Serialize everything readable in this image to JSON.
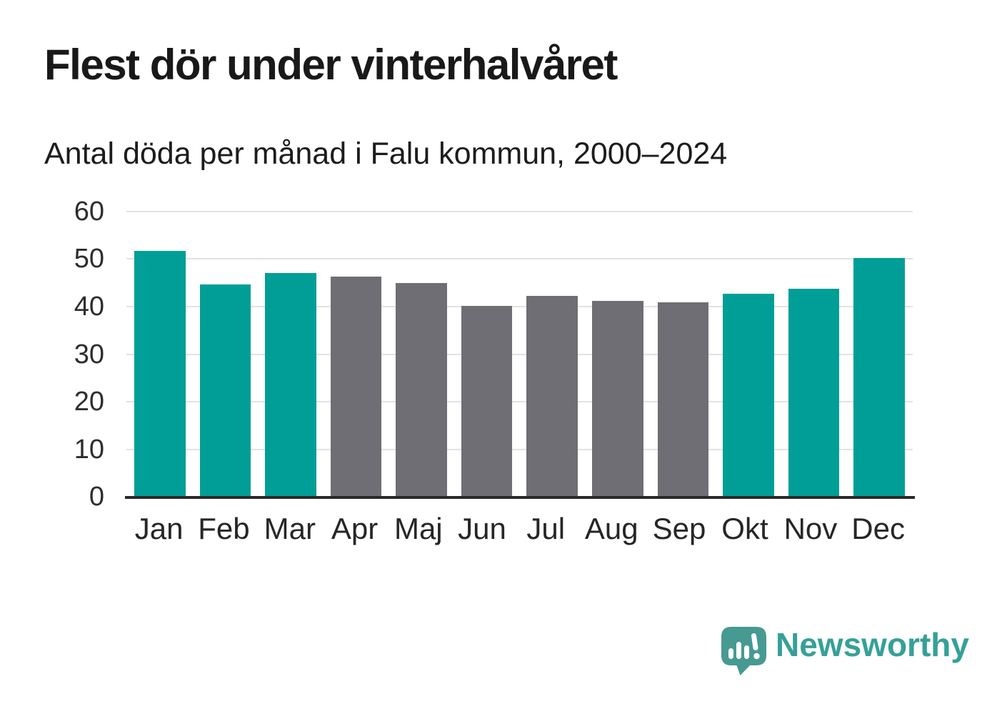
{
  "header": {
    "title": "Flest dör under vinterhalvåret",
    "subtitle": "Antal döda per månad i Falu kommun, 2000–2024"
  },
  "chart_data": {
    "type": "bar",
    "title": "Flest dör under vinterhalvåret",
    "subtitle": "Antal döda per månad i Falu kommun, 2000–2024",
    "categories": [
      "Jan",
      "Feb",
      "Mar",
      "Apr",
      "Maj",
      "Jun",
      "Jul",
      "Aug",
      "Sep",
      "Okt",
      "Nov",
      "Dec"
    ],
    "values": [
      51.8,
      44.6,
      47.0,
      46.3,
      45.0,
      40.1,
      42.3,
      41.2,
      40.9,
      42.7,
      43.7,
      50.3
    ],
    "bar_season": [
      "winter",
      "winter",
      "winter",
      "summer",
      "summer",
      "summer",
      "summer",
      "summer",
      "summer",
      "winter",
      "winter",
      "winter"
    ],
    "colors": {
      "winter": "#009E96",
      "summer": "#6E6E74"
    },
    "xlabel": "",
    "ylabel": "",
    "ylim": [
      0,
      60
    ],
    "yticks": [
      0,
      10,
      20,
      30,
      40,
      50,
      60
    ],
    "grid": "horizontal",
    "legend": "none",
    "gridline_color": "#e2e2e4",
    "axis_color": "#29292b"
  },
  "footer": {
    "logo_text": "Newsworthy",
    "logo_icon_color": "#469A92",
    "logo_text_color": "#36a098"
  }
}
